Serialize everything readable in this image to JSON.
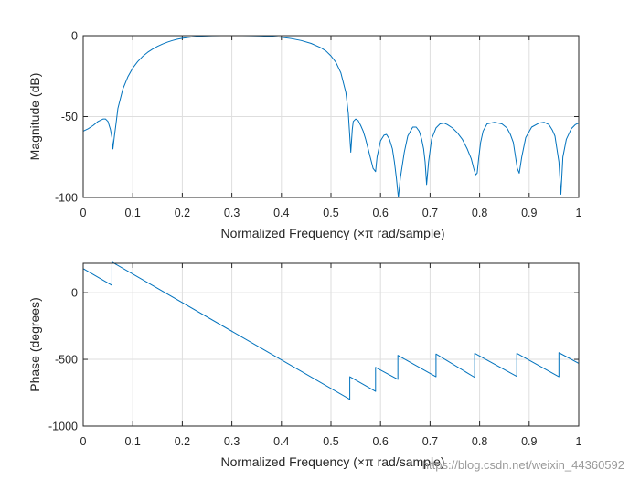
{
  "chart_data": [
    {
      "type": "line",
      "xlabel": "Normalized Frequency  (×π rad/sample)",
      "ylabel": "Magnitude (dB)",
      "xlim": [
        0,
        1
      ],
      "ylim": [
        -100,
        0
      ],
      "grid": true,
      "xticks": [
        "0",
        "0.1",
        "0.2",
        "0.3",
        "0.4",
        "0.5",
        "0.6",
        "0.7",
        "0.8",
        "0.9",
        "1"
      ],
      "yticks": [
        "0",
        "-50",
        "-100"
      ],
      "color": "#0072BD",
      "series": [
        {
          "x": [
            0,
            0.01,
            0.02,
            0.03,
            0.04,
            0.045,
            0.05,
            0.055,
            0.058,
            0.06,
            0.063,
            0.066,
            0.07,
            0.08,
            0.09,
            0.1,
            0.11,
            0.12,
            0.13,
            0.14,
            0.15,
            0.16,
            0.17,
            0.18,
            0.19,
            0.2,
            0.22,
            0.24,
            0.26,
            0.28,
            0.3,
            0.32,
            0.34,
            0.36,
            0.38,
            0.4,
            0.42,
            0.44,
            0.46,
            0.48,
            0.49,
            0.5,
            0.51,
            0.52,
            0.53,
            0.535,
            0.54,
            0.543,
            0.545,
            0.55,
            0.555,
            0.56,
            0.565,
            0.57,
            0.575,
            0.58,
            0.585,
            0.59,
            0.593,
            0.6,
            0.607,
            0.612,
            0.618,
            0.624,
            0.628,
            0.632,
            0.636,
            0.64,
            0.648,
            0.655,
            0.665,
            0.672,
            0.678,
            0.683,
            0.687,
            0.69,
            0.693,
            0.697,
            0.703,
            0.712,
            0.72,
            0.728,
            0.735,
            0.745,
            0.755,
            0.765,
            0.775,
            0.783,
            0.788,
            0.792,
            0.795,
            0.798,
            0.802,
            0.807,
            0.815,
            0.83,
            0.845,
            0.855,
            0.862,
            0.868,
            0.872,
            0.876,
            0.88,
            0.885,
            0.893,
            0.905,
            0.92,
            0.93,
            0.94,
            0.947,
            0.952,
            0.956,
            0.96,
            0.964,
            0.968,
            0.975,
            0.985,
            0.993,
            1.0
          ],
          "y": [
            -59,
            -57.5,
            -55.5,
            -53,
            -51.5,
            -51.5,
            -53,
            -58,
            -63,
            -70,
            -62,
            -55,
            -45,
            -33,
            -25.5,
            -20,
            -16,
            -12.8,
            -10.3,
            -8.3,
            -6.6,
            -5.2,
            -4,
            -3,
            -2.2,
            -1.6,
            -0.8,
            -0.3,
            -0.08,
            0,
            0,
            0,
            -0.05,
            -0.2,
            -0.5,
            -1,
            -1.8,
            -3,
            -4.8,
            -7.5,
            -9.5,
            -12.5,
            -16.5,
            -23,
            -35,
            -48,
            -72,
            -58,
            -53,
            -51.5,
            -52.5,
            -55.5,
            -59,
            -64,
            -70,
            -76,
            -82,
            -84,
            -75,
            -65,
            -61.5,
            -61,
            -64,
            -70,
            -78,
            -88,
            -100,
            -88,
            -72,
            -62,
            -56.5,
            -56.5,
            -59,
            -64,
            -70,
            -78,
            -92,
            -78,
            -64,
            -57,
            -54.5,
            -54,
            -55,
            -57,
            -60,
            -64,
            -70,
            -76,
            -82,
            -86,
            -85,
            -76,
            -66,
            -59,
            -54.5,
            -53.5,
            -54.5,
            -57,
            -61,
            -66,
            -74,
            -82,
            -85,
            -75,
            -63,
            -56.5,
            -54,
            -53.5,
            -55,
            -58.5,
            -62,
            -70,
            -78,
            -98,
            -75,
            -64,
            -57.5,
            -55,
            -54
          ]
        }
      ]
    },
    {
      "type": "line",
      "xlabel": "Normalized Frequency  (×π rad/sample)",
      "ylabel": "Phase (degrees)",
      "xlim": [
        0,
        1
      ],
      "ylim": [
        -1000,
        220
      ],
      "grid": true,
      "xticks": [
        "0",
        "0.1",
        "0.2",
        "0.3",
        "0.4",
        "0.5",
        "0.6",
        "0.7",
        "0.8",
        "0.9",
        "1"
      ],
      "yticks": [
        "0",
        "-500",
        "-1000"
      ],
      "color": "#0072BD",
      "series": [
        {
          "x": [
            0,
            0.058,
            0.058,
            0.538,
            0.538,
            0.59,
            0.59,
            0.635,
            0.635,
            0.712,
            0.712,
            0.79,
            0.79,
            0.875,
            0.875,
            0.96,
            0.96,
            1.0
          ],
          "y": [
            180,
            55,
            230,
            -800,
            -630,
            -740,
            -560,
            -650,
            -470,
            -630,
            -460,
            -635,
            -455,
            -628,
            -455,
            -630,
            -450,
            -530
          ]
        }
      ]
    }
  ],
  "watermark": "https://blog.csdn.net/weixin_44360592"
}
